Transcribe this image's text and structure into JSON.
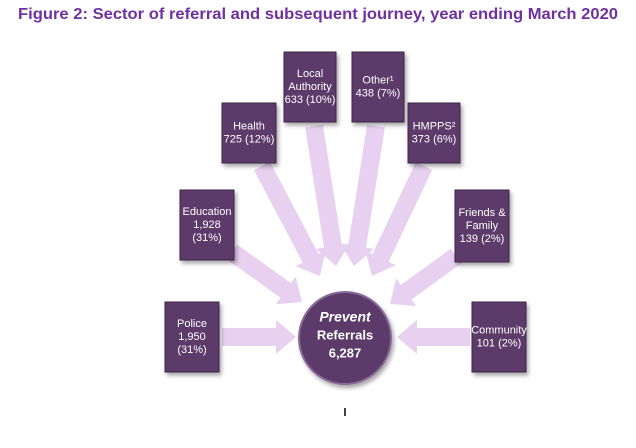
{
  "title": "Figure 2: Sector of referral and subsequent journey, year ending March 2020",
  "center": {
    "lines": [
      "Prevent",
      "Referrals",
      "6,287"
    ]
  },
  "nodes": [
    {
      "lines": [
        "Police",
        "1,950",
        "(31%)"
      ]
    },
    {
      "lines": [
        "Education",
        "1,928",
        "(31%)"
      ]
    },
    {
      "lines": [
        "Health",
        "725 (12%)"
      ]
    },
    {
      "lines": [
        "Local",
        "Authority",
        "633 (10%)"
      ]
    },
    {
      "lines": [
        "Other¹",
        "438 (7%)"
      ]
    },
    {
      "lines": [
        "HMPPS²",
        "373 (6%)"
      ]
    },
    {
      "lines": [
        "Friends &",
        "Family",
        "139 (2%)"
      ]
    },
    {
      "lines": [
        "Community",
        "101 (2%)"
      ]
    }
  ]
}
